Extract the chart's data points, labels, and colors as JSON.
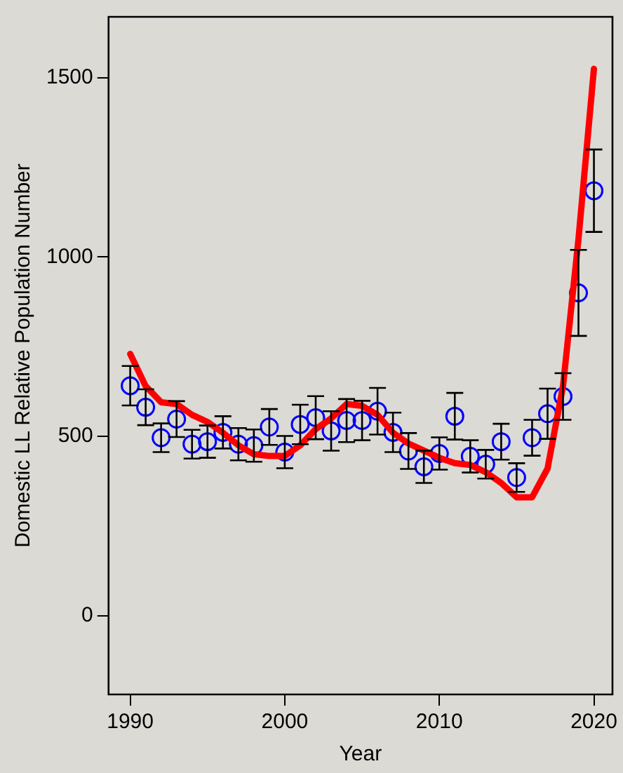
{
  "chart_data": {
    "type": "scatter",
    "xlabel": "Year",
    "ylabel": "Domestic LL Relative Population Number",
    "x": [
      1990,
      1991,
      1992,
      1993,
      1994,
      1995,
      1996,
      1997,
      1998,
      1999,
      2000,
      2001,
      2002,
      2003,
      2004,
      2005,
      2006,
      2007,
      2008,
      2009,
      2010,
      2011,
      2012,
      2013,
      2014,
      2015,
      2016,
      2017,
      2018,
      2019,
      2020
    ],
    "series": [
      {
        "color": "#0000ff",
        "marker": "circle",
        "values": [
          641,
          581,
          496,
          548,
          478,
          485,
          511,
          478,
          474,
          526,
          456,
          533,
          552,
          515,
          544,
          544,
          570,
          511,
          459,
          415,
          452,
          556,
          444,
          422,
          485,
          385,
          496,
          563,
          611,
          900,
          1185
        ],
        "errors": [
          55,
          50,
          40,
          50,
          40,
          45,
          45,
          45,
          45,
          50,
          45,
          55,
          60,
          55,
          60,
          55,
          65,
          55,
          50,
          45,
          45,
          65,
          45,
          40,
          50,
          40,
          50,
          70,
          65,
          120,
          115
        ]
      },
      {
        "type": "line",
        "color": "#ff0000",
        "marker": "none",
        "line_style": "solid",
        "values": [
          730,
          640,
          595,
          590,
          560,
          540,
          510,
          475,
          450,
          445,
          445,
          475,
          520,
          550,
          590,
          585,
          560,
          510,
          480,
          460,
          440,
          425,
          420,
          400,
          370,
          330,
          330,
          410,
          640,
          1050,
          1525
        ]
      }
    ],
    "xlim": [
      1988.6,
      2021.2
    ],
    "xticks": [
      1990,
      2000,
      2010,
      2020
    ],
    "ylim": [
      -220,
      1670
    ],
    "yticks": [
      0,
      500,
      1000,
      1500
    ],
    "grid": false,
    "legend": false
  }
}
